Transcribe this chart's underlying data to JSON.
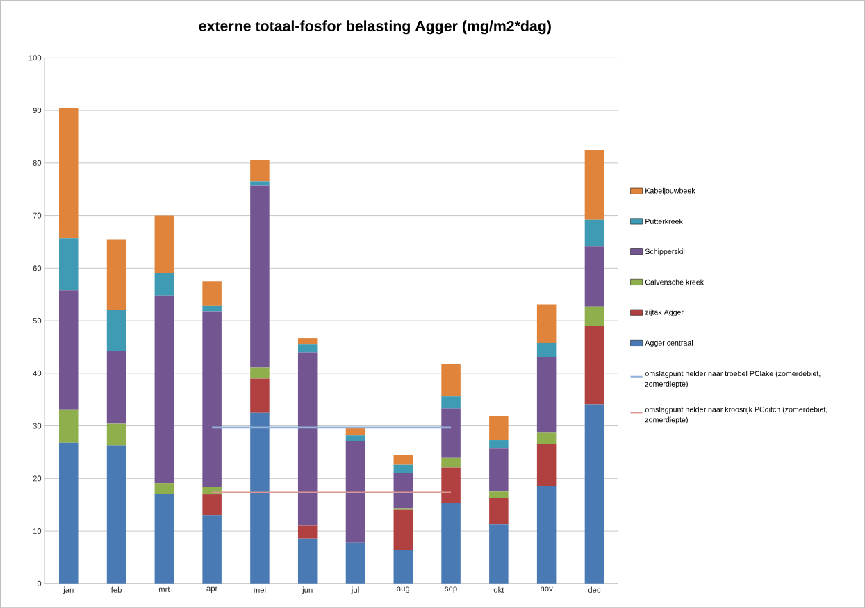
{
  "chart_data": {
    "type": "bar",
    "stacked": true,
    "title": "externe totaal-fosfor belasting Agger (mg/m2*dag)",
    "categories": [
      "jan",
      "feb",
      "mrt",
      "apr",
      "mei",
      "jun",
      "jul",
      "aug",
      "sep",
      "okt",
      "nov",
      "dec"
    ],
    "ylim": [
      0,
      100
    ],
    "yticks": [
      0,
      10,
      20,
      30,
      40,
      50,
      60,
      70,
      80,
      90,
      100
    ],
    "grid": "y",
    "legend": "right",
    "series": [
      {
        "name": "Agger centraal",
        "color": "#4a7ab4",
        "values": [
          26.8,
          26.3,
          17,
          13,
          32.5,
          8.6,
          7.8,
          6.3,
          15.4,
          11.3,
          18.6,
          34.1
        ]
      },
      {
        "name": "zijtak Agger",
        "color": "#b04140",
        "values": [
          0,
          0,
          0,
          4,
          6.5,
          2.4,
          0,
          7.7,
          6.7,
          5,
          8,
          14.9
        ]
      },
      {
        "name": "Calvensche kreek",
        "color": "#8fae4c",
        "values": [
          6.2,
          4.1,
          2.1,
          1.4,
          2.1,
          0,
          0,
          0.3,
          1.8,
          1.2,
          2.1,
          3.7
        ]
      },
      {
        "name": "Schipperskil",
        "color": "#735592",
        "values": [
          22.8,
          13.9,
          35.7,
          33.4,
          34.6,
          33,
          19.3,
          6.7,
          9.4,
          8.2,
          14.3,
          11.4
        ]
      },
      {
        "name": "Putterkreek",
        "color": "#3f9bb4",
        "values": [
          9.9,
          7.7,
          4.2,
          1,
          0.8,
          1.5,
          1.1,
          1.6,
          2.3,
          1.6,
          2.8,
          5.1
        ]
      },
      {
        "name": "Kabeljouwbeek",
        "color": "#e0843c",
        "values": [
          24.8,
          13.4,
          11,
          4.7,
          4.1,
          1.2,
          1.4,
          1.8,
          6.1,
          4.5,
          7.3,
          13.3
        ]
      },
      {
        "name": "omslagpunt helder naar troebel PClake (zomerdebiet, zomerdiepte)",
        "type": "line",
        "color": "#95b3d7",
        "values": [
          null,
          null,
          null,
          29.7,
          29.7,
          29.7,
          29.7,
          29.7,
          29.7,
          null,
          null,
          null
        ]
      },
      {
        "name": "omslagpunt helder naar kroosrijk PCditch (zomerdebiet, zomerdiepte)",
        "type": "line",
        "color": "#d99694",
        "values": [
          null,
          null,
          null,
          17.3,
          17.3,
          17.3,
          17.3,
          17.3,
          17.3,
          null,
          null,
          null
        ]
      }
    ]
  }
}
